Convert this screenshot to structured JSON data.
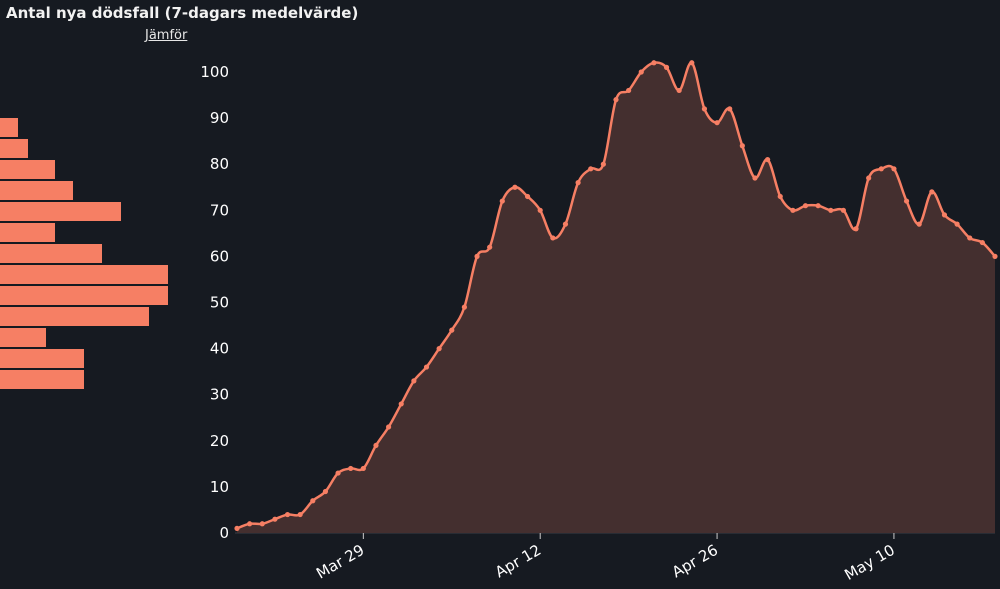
{
  "header": {
    "title": "Antal nya dödsfall (7-dagars medelvärde)",
    "compare_label": "Jämför"
  },
  "colors": {
    "background": "#161a21",
    "line": "#f67f64",
    "area": "#442f2f",
    "bars": "#f67f64"
  },
  "side_bars": {
    "values": [
      18,
      28,
      55,
      73,
      121,
      55,
      102,
      168,
      168,
      149,
      46,
      84,
      84
    ],
    "note_values_are_relative_lengths": true
  },
  "chart_data": {
    "type": "area",
    "title": "Antal nya dödsfall (7-dagars medelvärde)",
    "xlabel": "",
    "ylabel": "",
    "ylim": [
      0,
      100
    ],
    "yticks": [
      0,
      10,
      20,
      30,
      40,
      50,
      60,
      70,
      80,
      90,
      100
    ],
    "xticks": [
      {
        "label": "Mar 29",
        "date": "2020-03-29"
      },
      {
        "label": "Apr 12",
        "date": "2020-04-12"
      },
      {
        "label": "Apr 26",
        "date": "2020-04-26"
      },
      {
        "label": "May 10",
        "date": "2020-05-10"
      }
    ],
    "grid": false,
    "series": [
      {
        "x_start": "2020-03-19",
        "values": [
          1,
          2,
          2,
          3,
          4,
          4,
          7,
          9,
          13,
          14,
          14,
          19,
          23,
          28,
          33,
          36,
          40,
          44,
          49,
          60,
          62,
          72,
          75,
          73,
          70,
          64,
          67,
          76,
          79,
          80,
          94,
          96,
          100,
          102,
          101,
          96,
          102,
          92,
          89,
          92,
          84,
          77,
          81,
          73,
          70,
          71,
          71,
          70,
          70,
          66,
          77,
          79,
          79,
          72,
          67,
          74,
          69,
          67,
          64,
          63,
          60
        ]
      }
    ]
  }
}
